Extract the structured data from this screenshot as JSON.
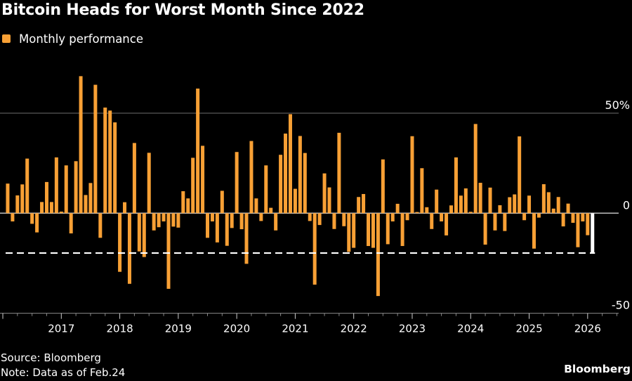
{
  "header": {
    "title": "Bitcoin Heads for Worst Month Since 2022"
  },
  "legend": {
    "label": "Monthly performance",
    "color": "#F8A035"
  },
  "footer": {
    "source": "Source: Bloomberg",
    "note": "Note: Data as of Feb.24",
    "brand": "Bloomberg"
  },
  "chart_data": {
    "type": "bar",
    "title": "Bitcoin Heads for Worst Month Since 2022",
    "xlabel": "",
    "ylabel": "",
    "ylim": [
      -50,
      50
    ],
    "y_ticks": [
      {
        "value": 50,
        "label": "50%"
      },
      {
        "value": 0,
        "label": "0"
      },
      {
        "value": -50,
        "label": "-50"
      }
    ],
    "x_ticks": [
      "2017",
      "2018",
      "2019",
      "2020",
      "2021",
      "2022",
      "2023",
      "2024",
      "2025",
      "2026"
    ],
    "grid": true,
    "legend_position": "top-left",
    "bar_color": "#F8A035",
    "highlight_color": "#FFFFFF",
    "reference_line": {
      "value": -19.9,
      "style": "dashed",
      "color": "#FFFFFF"
    },
    "start_month": "2016-02",
    "series": [
      {
        "name": "Monthly performance",
        "values": [
          14.8,
          -4.1,
          8.9,
          14.4,
          27.3,
          -5.3,
          -9.6,
          5.6,
          15.6,
          5.6,
          27.9,
          0.8,
          23.9,
          -10.1,
          26.0,
          68.5,
          9.1,
          15.1,
          64.2,
          -12.3,
          52.8,
          51.3,
          45.4,
          -29.3,
          5.5,
          -35.3,
          35.1,
          -19.1,
          -21.9,
          30.2,
          -8.6,
          -7.0,
          -4.1,
          -37.8,
          -6.7,
          -7.2,
          11.0,
          7.4,
          27.7,
          62.3,
          33.7,
          -12.3,
          -4.1,
          -14.6,
          11.2,
          -16.3,
          -7.4,
          30.6,
          -8.0,
          -25.3,
          36.1,
          7.4,
          -3.9,
          23.9,
          2.7,
          -8.6,
          29.2,
          39.8,
          49.5,
          12.2,
          38.6,
          30.1,
          -3.9,
          -35.7,
          -5.9,
          19.9,
          12.9,
          -7.9,
          40.2,
          -6.5,
          -19.3,
          -17.3,
          8.1,
          9.6,
          -16.4,
          -17.3,
          -41.4,
          26.9,
          -15.5,
          -4.1,
          4.7,
          -16.4,
          -3.5,
          38.5,
          0.6,
          22.5,
          3.0,
          -7.9,
          11.8,
          -4.1,
          -11.1,
          3.9,
          27.9,
          8.8,
          12.4,
          0.7,
          44.6,
          15.2,
          -15.7,
          12.8,
          -8.6,
          4.0,
          -8.9,
          8.0,
          9.4,
          38.4,
          -3.5,
          8.8,
          -17.7,
          -2.2,
          14.5,
          10.5,
          2.3,
          8.1,
          -6.6,
          4.8,
          -4.8,
          -17.0,
          -4.1,
          -11.0,
          -19.9
        ],
        "highlight_last": true
      }
    ]
  }
}
